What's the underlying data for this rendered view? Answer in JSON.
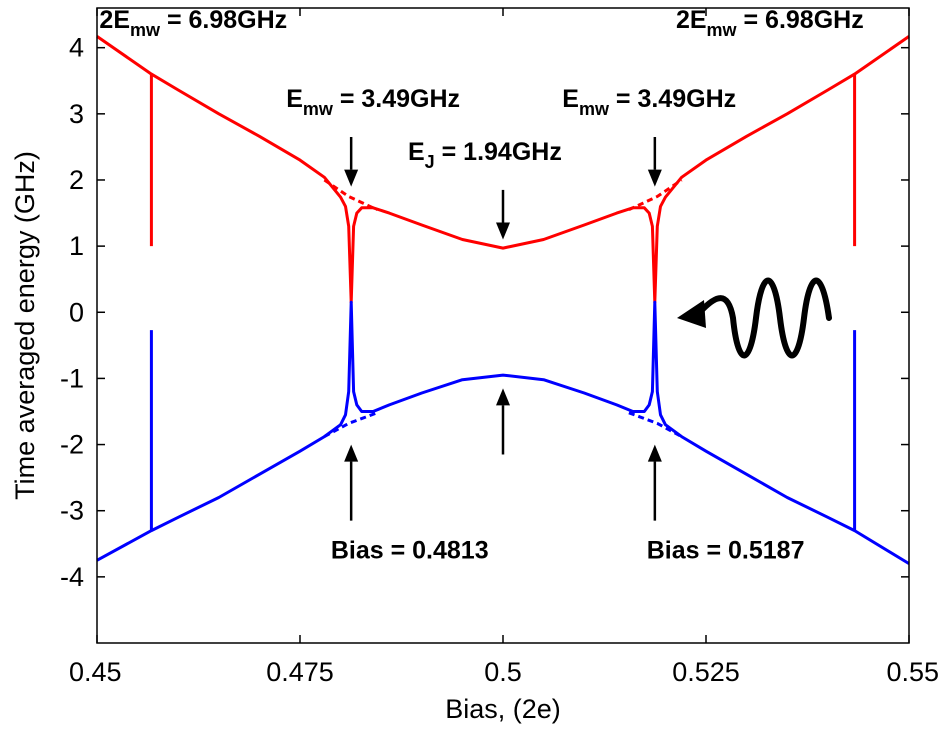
{
  "chart_data": {
    "type": "line",
    "xlabel": "Bias, (2e)",
    "ylabel": "Time averaged energy (GHz)",
    "xlim": [
      0.45,
      0.55
    ],
    "ylim": [
      -5,
      4.6
    ],
    "xticks": [
      0.45,
      0.475,
      0.5,
      0.525,
      0.55
    ],
    "xtick_labels": [
      "0.45",
      "0.475",
      "0.5",
      "0.525",
      "0.55"
    ],
    "yticks": [
      4,
      3,
      2,
      1,
      0,
      -1,
      -2,
      -3,
      -4
    ],
    "ytick_labels": [
      "4",
      "3",
      "2",
      "1",
      "0",
      "-1",
      "-2",
      "-3",
      "-4"
    ],
    "grid": false,
    "legend": "none",
    "colors": {
      "upper": "#ff0000",
      "lower": "#0000ff",
      "axis": "#000000"
    },
    "series": [
      {
        "color": "#ff0000",
        "x": [
          0.45,
          0.4567,
          0.46,
          0.465,
          0.47,
          0.475,
          0.478,
          0.48,
          0.4806,
          0.481,
          0.4813,
          0.4816,
          0.482,
          0.4826,
          0.484,
          0.486,
          0.49,
          0.495,
          0.5,
          0.505,
          0.51,
          0.514,
          0.516,
          0.5174,
          0.518,
          0.5184,
          0.5187,
          0.519,
          0.5194,
          0.52,
          0.522,
          0.525,
          0.53,
          0.535,
          0.54,
          0.5433,
          0.55
        ],
        "y": [
          4.17,
          3.6,
          3.36,
          3.0,
          2.66,
          2.3,
          2.04,
          1.74,
          1.6,
          1.3,
          0.15,
          1.3,
          1.5,
          1.58,
          1.58,
          1.5,
          1.32,
          1.1,
          0.97,
          1.1,
          1.32,
          1.5,
          1.58,
          1.58,
          1.5,
          1.3,
          0.15,
          1.3,
          1.6,
          1.74,
          2.04,
          2.3,
          2.66,
          3.0,
          3.36,
          3.6,
          4.17
        ]
      },
      {
        "color": "#0000ff",
        "x": [
          0.45,
          0.4567,
          0.46,
          0.465,
          0.47,
          0.475,
          0.478,
          0.48,
          0.4806,
          0.481,
          0.4813,
          0.4816,
          0.482,
          0.4826,
          0.484,
          0.486,
          0.49,
          0.495,
          0.5,
          0.505,
          0.51,
          0.514,
          0.516,
          0.5174,
          0.518,
          0.5184,
          0.5187,
          0.519,
          0.5194,
          0.52,
          0.522,
          0.525,
          0.53,
          0.535,
          0.54,
          0.5433,
          0.55
        ],
        "y": [
          -3.75,
          -3.3,
          -3.1,
          -2.8,
          -2.45,
          -2.1,
          -1.88,
          -1.7,
          -1.55,
          -1.2,
          0.15,
          -1.2,
          -1.4,
          -1.5,
          -1.5,
          -1.4,
          -1.22,
          -1.02,
          -0.95,
          -1.02,
          -1.22,
          -1.4,
          -1.5,
          -1.5,
          -1.4,
          -1.2,
          0.15,
          -1.2,
          -1.55,
          -1.7,
          -1.88,
          -2.1,
          -2.45,
          -2.8,
          -3.1,
          -3.3,
          -3.8
        ]
      }
    ],
    "vertical_segments": [
      {
        "x": 0.4567,
        "y1": 3.6,
        "y2": 1.0,
        "color": "#ff0000"
      },
      {
        "x": 0.4567,
        "y1": -0.27,
        "y2": -3.3,
        "color": "#0000ff"
      },
      {
        "x": 0.5433,
        "y1": 3.6,
        "y2": 1.0,
        "color": "#ff0000"
      },
      {
        "x": 0.5433,
        "y1": -0.27,
        "y2": -3.3,
        "color": "#0000ff"
      }
    ],
    "dashed_segments": [
      {
        "x": [
          0.478,
          0.481,
          0.4845
        ],
        "y": [
          2.0,
          1.75,
          1.55
        ],
        "color": "#ff0000"
      },
      {
        "x": [
          0.5155,
          0.519,
          0.522
        ],
        "y": [
          1.55,
          1.75,
          2.0
        ],
        "color": "#ff0000"
      },
      {
        "x": [
          0.478,
          0.481,
          0.4845
        ],
        "y": [
          -1.88,
          -1.68,
          -1.52
        ],
        "color": "#0000ff"
      },
      {
        "x": [
          0.5155,
          0.519,
          0.522
        ],
        "y": [
          -1.52,
          -1.68,
          -1.88
        ],
        "color": "#0000ff"
      }
    ],
    "annotations": [
      {
        "main": "2E",
        "sub": "mw",
        "rest": " = 6.98GHz",
        "x": 0.4503,
        "y": 4.3
      },
      {
        "main": "2E",
        "sub": "mw",
        "rest": " = 6.98GHz",
        "x": 0.5213,
        "y": 4.3
      },
      {
        "main": "E",
        "sub": "mw",
        "rest": " = 3.49GHz",
        "x": 0.4733,
        "y": 3.1
      },
      {
        "main": "E",
        "sub": "mw",
        "rest": " = 3.49GHz",
        "x": 0.5073,
        "y": 3.1
      },
      {
        "main": "E",
        "sub": "J",
        "rest": " = 1.94GHz",
        "x": 0.4883,
        "y": 2.3
      },
      {
        "main": "Bias = 0.4813",
        "sub": "",
        "rest": "",
        "x": 0.4788,
        "y": -3.72
      },
      {
        "main": "Bias = 0.5187",
        "sub": "",
        "rest": "",
        "x": 0.5177,
        "y": -3.72
      }
    ],
    "arrows": [
      {
        "x": 0.4813,
        "y_from": 2.65,
        "y_to": 1.9
      },
      {
        "x": 0.5187,
        "y_from": 2.65,
        "y_to": 1.9
      },
      {
        "x": 0.5,
        "y_from": 1.85,
        "y_to": 1.1
      },
      {
        "x": 0.4813,
        "y_from": -3.15,
        "y_to": -2.0
      },
      {
        "x": 0.5187,
        "y_from": -3.15,
        "y_to": -2.0
      },
      {
        "x": 0.5,
        "y_from": -2.15,
        "y_to": -1.15
      }
    ]
  }
}
